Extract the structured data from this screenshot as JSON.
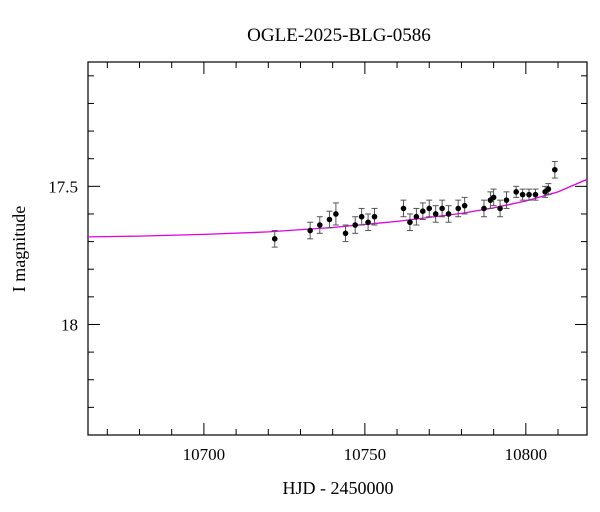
{
  "chart_data": {
    "type": "scatter",
    "title": "OGLE-2025-BLG-0586",
    "xlabel": "HJD - 2450000",
    "ylabel": "I magnitude",
    "xlim": [
      10664,
      10819
    ],
    "ylim": [
      18.4,
      17.05
    ],
    "y_inverted": true,
    "grid": false,
    "x_major_ticks": [
      10700,
      10750,
      10800
    ],
    "x_minor_step": 10,
    "y_major_ticks": [
      17.5,
      18
    ],
    "y_minor_step": 0.1,
    "x_tick_labels": [
      "10700",
      "10750",
      "10800"
    ],
    "y_tick_labels": [
      "17.5",
      "18"
    ],
    "colors": {
      "model": "#e000e0",
      "points": "#000000",
      "errorbars": "#555555"
    },
    "series": [
      {
        "kind": "points-with-errors",
        "x": [
          10722,
          10733,
          10736,
          10739,
          10741,
          10744,
          10747,
          10749,
          10751,
          10753,
          10762,
          10764,
          10766,
          10768,
          10770,
          10772,
          10774,
          10776,
          10779,
          10781,
          10787,
          10789,
          10790,
          10792,
          10794,
          10797,
          10799,
          10801,
          10803,
          10806,
          10807,
          10809
        ],
        "y": [
          17.69,
          17.66,
          17.64,
          17.62,
          17.6,
          17.67,
          17.64,
          17.61,
          17.63,
          17.61,
          17.58,
          17.63,
          17.61,
          17.59,
          17.58,
          17.6,
          17.58,
          17.6,
          17.58,
          17.57,
          17.58,
          17.55,
          17.54,
          17.58,
          17.55,
          17.52,
          17.53,
          17.53,
          17.53,
          17.52,
          17.51,
          17.44
        ],
        "err": [
          0.03,
          0.03,
          0.03,
          0.03,
          0.04,
          0.03,
          0.03,
          0.03,
          0.03,
          0.03,
          0.03,
          0.03,
          0.03,
          0.03,
          0.03,
          0.03,
          0.03,
          0.03,
          0.03,
          0.03,
          0.03,
          0.03,
          0.03,
          0.03,
          0.03,
          0.02,
          0.02,
          0.02,
          0.02,
          0.02,
          0.02,
          0.03
        ]
      },
      {
        "kind": "model-line",
        "x": [
          10664,
          10680,
          10700,
          10720,
          10740,
          10760,
          10780,
          10790,
          10800,
          10810,
          10819
        ],
        "y": [
          17.683,
          17.68,
          17.674,
          17.665,
          17.649,
          17.627,
          17.598,
          17.578,
          17.553,
          17.52,
          17.475
        ]
      }
    ]
  }
}
